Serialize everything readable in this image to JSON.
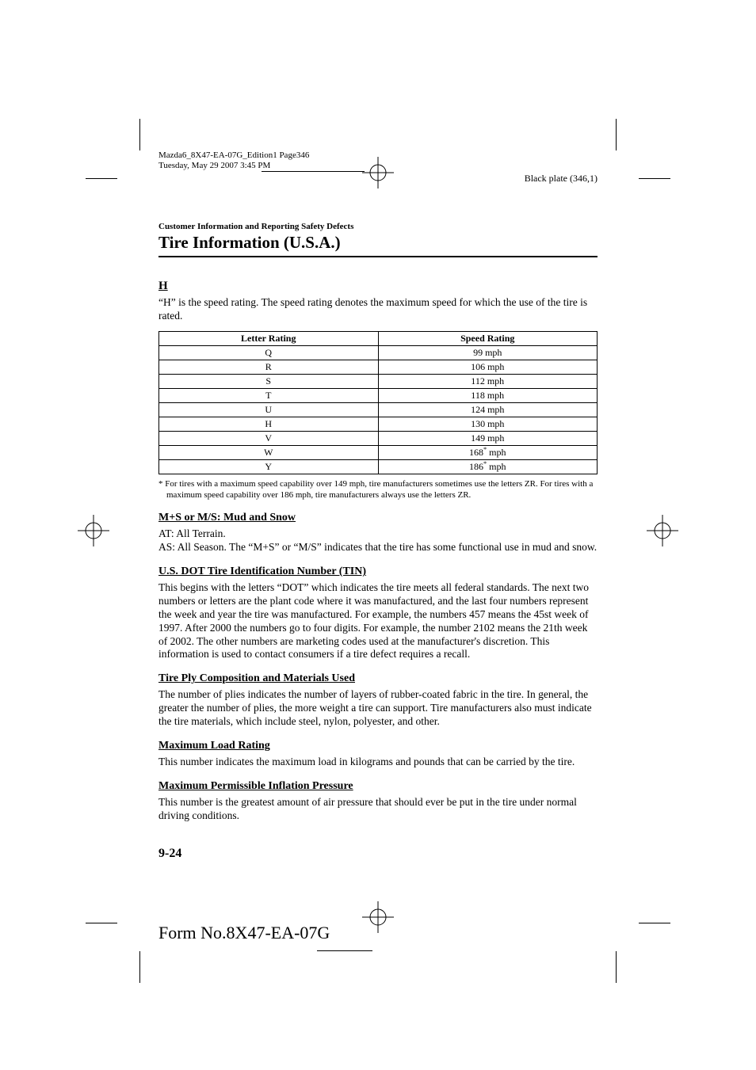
{
  "meta": {
    "header_line1": "Mazda6_8X47-EA-07G_Edition1 Page346",
    "header_line2": "Tuesday, May 29 2007 3:45 PM",
    "black_plate": "Black plate (346,1)"
  },
  "breadcrumb": "Customer Information and Reporting Safety Defects",
  "section_title": "Tire Information (U.S.A.)",
  "h_section": {
    "heading": "H",
    "text": "“H” is the speed rating. The speed rating denotes the maximum speed for which the use of the tire is rated."
  },
  "speed_table": {
    "columns": [
      "Letter Rating",
      "Speed Rating"
    ],
    "rows": [
      [
        "Q",
        "99 mph"
      ],
      [
        "R",
        "106 mph"
      ],
      [
        "S",
        "112 mph"
      ],
      [
        "T",
        "118 mph"
      ],
      [
        "U",
        "124 mph"
      ],
      [
        "H",
        "130 mph"
      ],
      [
        "V",
        "149 mph"
      ],
      [
        "W",
        "168* mph"
      ],
      [
        "Y",
        "186* mph"
      ]
    ],
    "col_widths": [
      "50%",
      "50%"
    ]
  },
  "footnote": "* For tires with a maximum speed capability over 149 mph, tire manufacturers sometimes use the letters ZR. For tires with a maximum speed capability over 186 mph, tire manufacturers always use the letters ZR.",
  "sections": [
    {
      "heading": "M+S or M/S: Mud and Snow",
      "text": "AT: All Terrain.\nAS: All Season. The “M+S” or “M/S” indicates that the tire has some functional use in mud and snow."
    },
    {
      "heading": "U.S. DOT Tire Identification Number (TIN)",
      "text": "This begins with the letters “DOT” which indicates the tire meets all federal standards. The next two numbers or letters are the plant code where it was manufactured, and the last four numbers represent the week and year the tire was manufactured. For example, the numbers 457 means the 45st week of 1997. After 2000 the numbers go to four digits. For example, the number 2102 means the 21th week of 2002. The other numbers are marketing codes used at the manufacturer's discretion. This information is used to contact consumers if a tire defect requires a recall."
    },
    {
      "heading": "Tire Ply Composition and Materials Used",
      "text": "The number of plies indicates the number of layers of rubber-coated fabric in the tire. In general, the greater the number of plies, the more weight a tire can support. Tire manufacturers also must indicate the tire materials, which include steel, nylon, polyester, and other."
    },
    {
      "heading": "Maximum Load Rating",
      "text": "This number indicates the maximum load in kilograms and pounds that can be carried by the tire."
    },
    {
      "heading": "Maximum Permissible Inflation Pressure",
      "text": "This number is the greatest amount of air pressure that should ever be put in the tire under normal driving conditions."
    }
  ],
  "page_number": "9-24",
  "form_no": "Form No.8X47-EA-07G",
  "colors": {
    "text": "#000000",
    "background": "#ffffff",
    "rule": "#000000"
  }
}
